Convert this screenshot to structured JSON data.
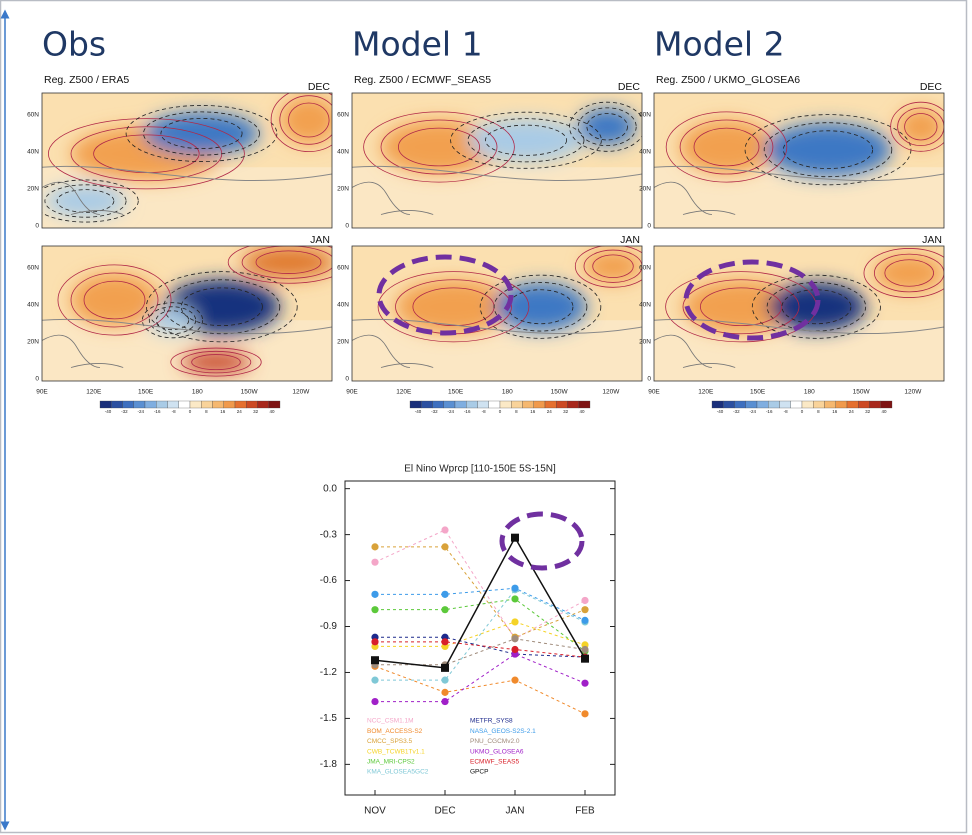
{
  "headers": [
    "Obs",
    "Model 1",
    "Model 2"
  ],
  "maps": [
    {
      "title": "Reg. Z500 / ERA5",
      "months": [
        "DEC",
        "JAN"
      ]
    },
    {
      "title": "Reg. Z500 / ECMWF_SEAS5",
      "months": [
        "DEC",
        "JAN"
      ]
    },
    {
      "title": "Reg. Z500 / UKMO_GLOSEA6",
      "months": [
        "DEC",
        "JAN"
      ]
    }
  ],
  "lat_labels": [
    "60N",
    "40N",
    "20N",
    "0"
  ],
  "lon_labels": [
    "90E",
    "120E",
    "150E",
    "180",
    "150W",
    "120W"
  ],
  "colorbar_labels": [
    "-40",
    "-32",
    "-24",
    "-16",
    "-8",
    "0",
    "8",
    "16",
    "24",
    "32",
    "40"
  ],
  "chart_data": {
    "type": "line",
    "title": "El Nino Wprcp [110-150E 5S-15N]",
    "categories": [
      "NOV",
      "DEC",
      "JAN",
      "FEB"
    ],
    "ylim": [
      -2.0,
      0.05
    ],
    "yticks": [
      {
        "value": 0,
        "label": "0.0"
      },
      -0.3,
      -0.6,
      -0.9,
      -1.2,
      -1.5,
      -1.8
    ],
    "series": [
      {
        "name": "NCC_CSM1.1M",
        "color": "#f4a6c8",
        "linestyle": "dashed",
        "marker": "circle",
        "values": [
          -0.48,
          -0.27,
          -0.98,
          -0.73
        ]
      },
      {
        "name": "BOM_ACCESS-S2",
        "color": "#f08a2c",
        "linestyle": "dashed",
        "marker": "circle",
        "values": [
          -1.16,
          -1.33,
          -1.25,
          -1.47
        ]
      },
      {
        "name": "CMCC_SPS3.5",
        "color": "#d9a23a",
        "linestyle": "dashed",
        "marker": "circle",
        "values": [
          -0.38,
          -0.38,
          -0.97,
          -0.79
        ]
      },
      {
        "name": "CWB_TCWB1Tv1.1",
        "color": "#f5d327",
        "linestyle": "dashed",
        "marker": "circle",
        "values": [
          -1.03,
          -1.03,
          -0.87,
          -1.02
        ]
      },
      {
        "name": "JMA_MRI-CPS2",
        "color": "#5cc93a",
        "linestyle": "dashed",
        "marker": "circle",
        "values": [
          -0.79,
          -0.79,
          -0.72,
          -1.06
        ]
      },
      {
        "name": "KMA_GLOSEA5GC2",
        "color": "#7fc8d6",
        "linestyle": "dashed",
        "marker": "circle",
        "values": [
          -1.25,
          -1.25,
          -0.66,
          -0.87
        ]
      },
      {
        "name": "METFR_SYS8",
        "color": "#1d2a8c",
        "linestyle": "dashed",
        "marker": "circle",
        "values": [
          -0.97,
          -0.97,
          -1.08,
          -1.1
        ]
      },
      {
        "name": "NASA_GEOS-S2S-2.1",
        "color": "#3d9be9",
        "linestyle": "dashed",
        "marker": "circle",
        "values": [
          -0.69,
          -0.69,
          -0.65,
          -0.86
        ]
      },
      {
        "name": "PNU_CGCMv2.0",
        "color": "#a08c7c",
        "linestyle": "dashed",
        "marker": "circle",
        "values": [
          -1.15,
          -1.15,
          -0.98,
          -1.05
        ]
      },
      {
        "name": "UKMO_GLOSEA6",
        "color": "#a020c8",
        "linestyle": "dashed",
        "marker": "circle",
        "values": [
          -1.39,
          -1.39,
          -1.08,
          -1.27
        ]
      },
      {
        "name": "ECMWF_SEAS5",
        "color": "#d8202a",
        "linestyle": "dashed",
        "marker": "circle",
        "values": [
          -1.0,
          -1.0,
          -1.05,
          -1.1
        ]
      },
      {
        "name": "GPCP",
        "color": "#111111",
        "linestyle": "solid",
        "marker": "square",
        "values": [
          -1.12,
          -1.17,
          -0.32,
          -1.11
        ]
      }
    ]
  }
}
